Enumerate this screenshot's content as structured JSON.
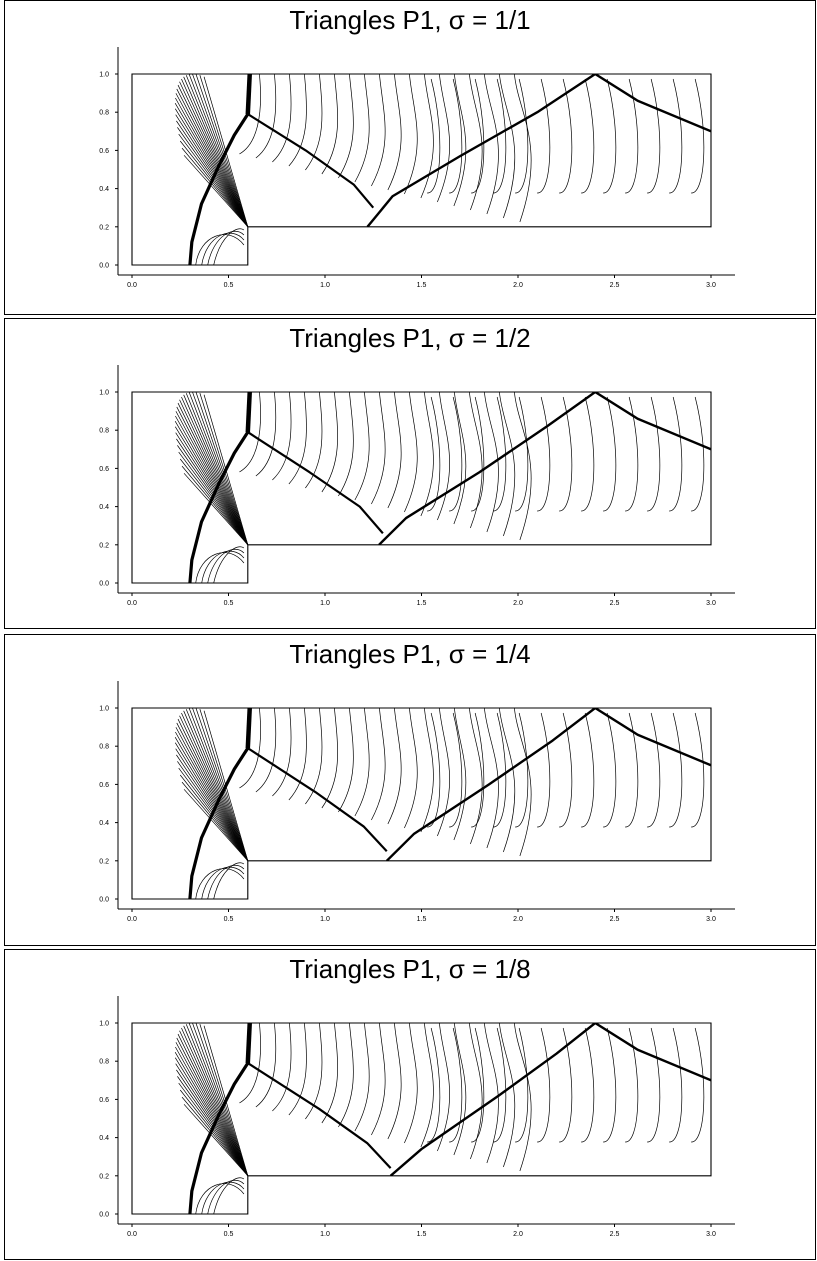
{
  "chart_data": [
    {
      "type": "contour",
      "title": "Triangles P1, σ = 1/1",
      "xlim": [
        0.0,
        3.0
      ],
      "ylim": [
        0.0,
        1.0
      ],
      "x_ticks": [
        "0.0",
        "0.5",
        "1.0",
        "1.5",
        "2.0",
        "2.5",
        "3.0"
      ],
      "y_ticks": [
        "0.0",
        "0.2",
        "0.4",
        "0.6",
        "0.8",
        "1.0"
      ],
      "domain_outline": [
        [
          0.0,
          0.0
        ],
        [
          0.6,
          0.0
        ],
        [
          0.6,
          0.2
        ],
        [
          3.0,
          0.2
        ],
        [
          3.0,
          1.0
        ],
        [
          0.0,
          1.0
        ],
        [
          0.0,
          0.0
        ]
      ],
      "shock_bow": [
        [
          0.3,
          0.0
        ],
        [
          0.31,
          0.12
        ],
        [
          0.36,
          0.32
        ],
        [
          0.45,
          0.52
        ],
        [
          0.53,
          0.68
        ],
        [
          0.6,
          0.79
        ]
      ],
      "shock_mach_stem": [
        [
          0.6,
          0.79
        ],
        [
          0.61,
          1.0
        ]
      ],
      "shock_reflected": [
        [
          0.6,
          0.79
        ],
        [
          0.9,
          0.6
        ],
        [
          1.15,
          0.42
        ],
        [
          1.25,
          0.3
        ]
      ],
      "shock_second": [
        [
          1.22,
          0.2
        ],
        [
          1.35,
          0.36
        ],
        [
          1.7,
          0.57
        ],
        [
          2.1,
          0.8
        ],
        [
          2.4,
          1.0
        ],
        [
          2.62,
          0.86
        ],
        [
          3.0,
          0.7
        ]
      ],
      "step_corner": [
        0.6,
        0.2
      ]
    },
    {
      "type": "contour",
      "title": "Triangles P1, σ = 1/2",
      "xlim": [
        0.0,
        3.0
      ],
      "ylim": [
        0.0,
        1.0
      ],
      "x_ticks": [
        "0.0",
        "0.5",
        "1.0",
        "1.5",
        "2.0",
        "2.5",
        "3.0"
      ],
      "y_ticks": [
        "0.0",
        "0.2",
        "0.4",
        "0.6",
        "0.8",
        "1.0"
      ],
      "domain_outline": [
        [
          0.0,
          0.0
        ],
        [
          0.6,
          0.0
        ],
        [
          0.6,
          0.2
        ],
        [
          3.0,
          0.2
        ],
        [
          3.0,
          1.0
        ],
        [
          0.0,
          1.0
        ],
        [
          0.0,
          0.0
        ]
      ],
      "shock_bow": [
        [
          0.3,
          0.0
        ],
        [
          0.31,
          0.12
        ],
        [
          0.36,
          0.32
        ],
        [
          0.45,
          0.52
        ],
        [
          0.53,
          0.68
        ],
        [
          0.6,
          0.79
        ]
      ],
      "shock_mach_stem": [
        [
          0.6,
          0.79
        ],
        [
          0.61,
          1.0
        ]
      ],
      "shock_reflected": [
        [
          0.6,
          0.79
        ],
        [
          0.92,
          0.58
        ],
        [
          1.18,
          0.4
        ],
        [
          1.3,
          0.26
        ]
      ],
      "shock_second": [
        [
          1.28,
          0.2
        ],
        [
          1.42,
          0.34
        ],
        [
          1.8,
          0.58
        ],
        [
          2.15,
          0.82
        ],
        [
          2.4,
          1.0
        ],
        [
          2.62,
          0.86
        ],
        [
          3.0,
          0.7
        ]
      ],
      "step_corner": [
        0.6,
        0.2
      ]
    },
    {
      "type": "contour",
      "title": "Triangles P1, σ = 1/4",
      "xlim": [
        0.0,
        3.0
      ],
      "ylim": [
        0.0,
        1.0
      ],
      "x_ticks": [
        "0.0",
        "0.5",
        "1.0",
        "1.5",
        "2.0",
        "2.5",
        "3.0"
      ],
      "y_ticks": [
        "0.0",
        "0.2",
        "0.4",
        "0.6",
        "0.8",
        "1.0"
      ],
      "domain_outline": [
        [
          0.0,
          0.0
        ],
        [
          0.6,
          0.0
        ],
        [
          0.6,
          0.2
        ],
        [
          3.0,
          0.2
        ],
        [
          3.0,
          1.0
        ],
        [
          0.0,
          1.0
        ],
        [
          0.0,
          0.0
        ]
      ],
      "shock_bow": [
        [
          0.3,
          0.0
        ],
        [
          0.31,
          0.12
        ],
        [
          0.36,
          0.32
        ],
        [
          0.45,
          0.52
        ],
        [
          0.53,
          0.68
        ],
        [
          0.6,
          0.79
        ]
      ],
      "shock_mach_stem": [
        [
          0.6,
          0.79
        ],
        [
          0.61,
          1.0
        ]
      ],
      "shock_reflected": [
        [
          0.6,
          0.79
        ],
        [
          0.95,
          0.56
        ],
        [
          1.2,
          0.38
        ],
        [
          1.32,
          0.25
        ]
      ],
      "shock_second": [
        [
          1.32,
          0.2
        ],
        [
          1.46,
          0.34
        ],
        [
          1.85,
          0.6
        ],
        [
          2.18,
          0.83
        ],
        [
          2.4,
          1.0
        ],
        [
          2.62,
          0.86
        ],
        [
          3.0,
          0.7
        ]
      ],
      "step_corner": [
        0.6,
        0.2
      ]
    },
    {
      "type": "contour",
      "title": "Triangles P1, σ = 1/8",
      "xlim": [
        0.0,
        3.0
      ],
      "ylim": [
        0.0,
        1.0
      ],
      "x_ticks": [
        "0.0",
        "0.5",
        "1.0",
        "1.5",
        "2.0",
        "2.5",
        "3.0"
      ],
      "y_ticks": [
        "0.0",
        "0.2",
        "0.4",
        "0.6",
        "0.8",
        "1.0"
      ],
      "domain_outline": [
        [
          0.0,
          0.0
        ],
        [
          0.6,
          0.0
        ],
        [
          0.6,
          0.2
        ],
        [
          3.0,
          0.2
        ],
        [
          3.0,
          1.0
        ],
        [
          0.0,
          1.0
        ],
        [
          0.0,
          0.0
        ]
      ],
      "shock_bow": [
        [
          0.3,
          0.0
        ],
        [
          0.31,
          0.12
        ],
        [
          0.36,
          0.32
        ],
        [
          0.45,
          0.52
        ],
        [
          0.53,
          0.68
        ],
        [
          0.6,
          0.79
        ]
      ],
      "shock_mach_stem": [
        [
          0.6,
          0.79
        ],
        [
          0.61,
          1.0
        ]
      ],
      "shock_reflected": [
        [
          0.6,
          0.79
        ],
        [
          0.97,
          0.55
        ],
        [
          1.22,
          0.37
        ],
        [
          1.34,
          0.24
        ]
      ],
      "shock_second": [
        [
          1.34,
          0.2
        ],
        [
          1.5,
          0.34
        ],
        [
          1.9,
          0.62
        ],
        [
          2.2,
          0.84
        ],
        [
          2.4,
          1.0
        ],
        [
          2.62,
          0.86
        ],
        [
          3.0,
          0.7
        ]
      ],
      "step_corner": [
        0.6,
        0.2
      ]
    }
  ]
}
